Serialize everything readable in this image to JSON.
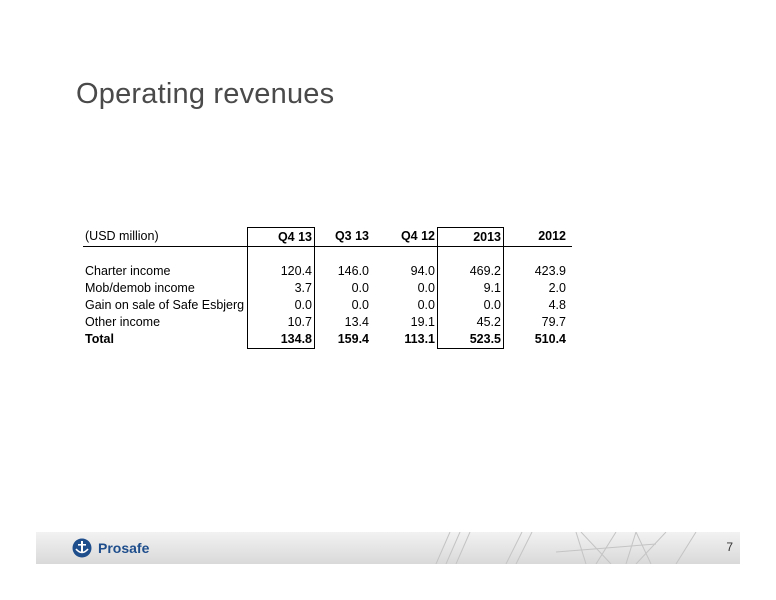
{
  "page": {
    "title": "Operating revenues",
    "page_number": "7"
  },
  "table": {
    "unit_label": "(USD million)",
    "columns": [
      "Q4 13",
      "Q3 13",
      "Q4 12",
      "2013",
      "2012"
    ],
    "rows": [
      {
        "label": "Charter income",
        "values": [
          "120.4",
          "146.0",
          "94.0",
          "469.2",
          "423.9"
        ]
      },
      {
        "label": "Mob/demob income",
        "values": [
          "3.7",
          "0.0",
          "0.0",
          "9.1",
          "2.0"
        ]
      },
      {
        "label": "Gain on sale of Safe Esbjerg",
        "values": [
          "0.0",
          "0.0",
          "0.0",
          "0.0",
          "4.8"
        ]
      },
      {
        "label": "Other income",
        "values": [
          "10.7",
          "13.4",
          "19.1",
          "45.2",
          "79.7"
        ]
      }
    ],
    "total": {
      "label": "Total",
      "values": [
        "134.8",
        "159.4",
        "113.1",
        "523.5",
        "510.4"
      ]
    }
  },
  "footer": {
    "logo_text": "Prosafe",
    "logo_icon": "prosafe-logo-icon",
    "brand_color": "#1f4e8c"
  }
}
